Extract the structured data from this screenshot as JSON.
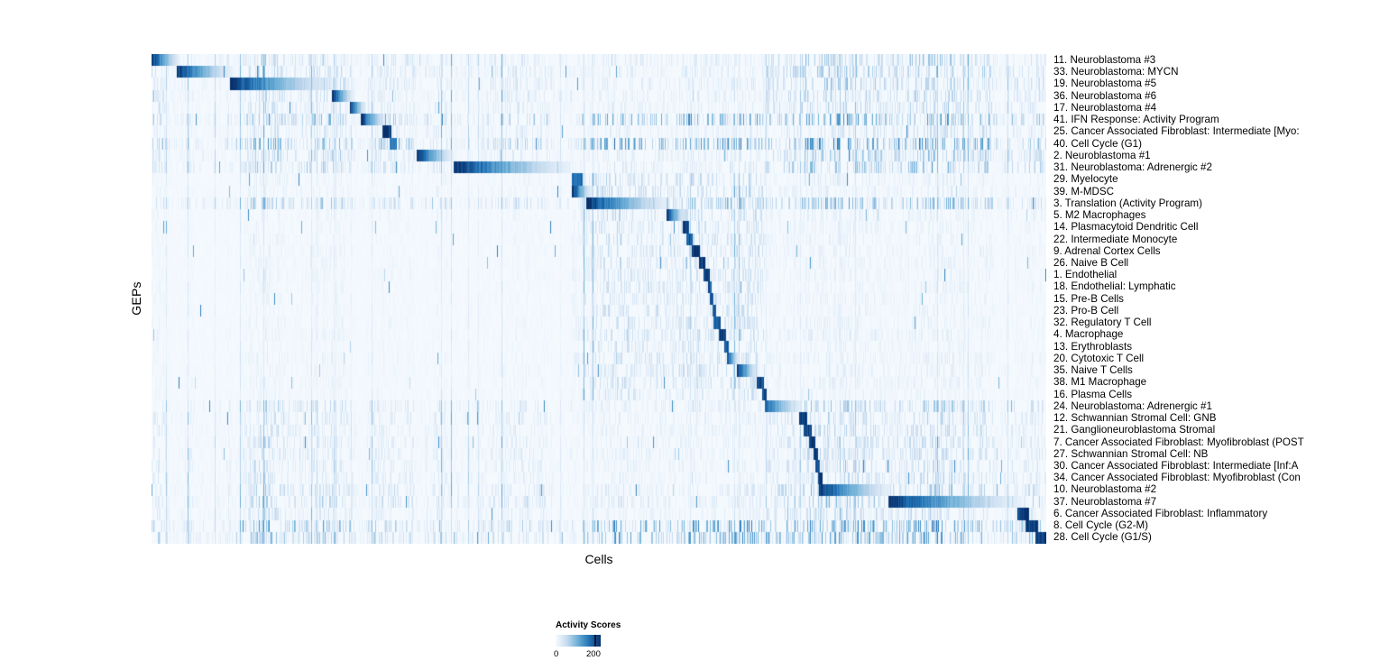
{
  "figure": {
    "y_axis_label": "GEPs",
    "x_axis_label": "Cells",
    "legend": {
      "title": "Activity Scores",
      "min_label": "0",
      "max_label": "200"
    }
  },
  "chart_data": {
    "type": "heatmap",
    "title": "",
    "xlabel": "Cells",
    "ylabel": "GEPs",
    "legend_title": "Activity Scores",
    "colorscale": {
      "min": 0,
      "max": 200,
      "stops": [
        "#f7fbff",
        "#c6dbef",
        "#6baed6",
        "#2171b5",
        "#08306b"
      ]
    },
    "rows": [
      {
        "label": "11. Neuroblastoma #3",
        "start": 0.0,
        "end": 0.032,
        "peak": 200,
        "fade": true,
        "noise": 1.4,
        "group": "nb"
      },
      {
        "label": "33. Neuroblastoma: MYCN",
        "start": 0.028,
        "end": 0.091,
        "peak": 200,
        "fade": true,
        "noise": 1.4,
        "group": "nb"
      },
      {
        "label": "19. Neuroblastoma #5",
        "start": 0.088,
        "end": 0.206,
        "peak": 190,
        "fade": true,
        "noise": 1.4,
        "group": "nb"
      },
      {
        "label": "36. Neuroblastoma #6",
        "start": 0.202,
        "end": 0.226,
        "peak": 200,
        "fade": true,
        "noise": 1.2,
        "group": "nb"
      },
      {
        "label": "17. Neuroblastoma #4",
        "start": 0.222,
        "end": 0.24,
        "peak": 190,
        "fade": true,
        "noise": 1.2,
        "group": "nb"
      },
      {
        "label": "41. IFN Response: Activity Program",
        "start": 0.234,
        "end": 0.262,
        "peak": 200,
        "fade": true,
        "noise": 2.2,
        "group": "cc"
      },
      {
        "label": "25. Cancer Associated Fibroblast: Intermediate [Myo:",
        "start": 0.258,
        "end": 0.268,
        "peak": 200,
        "fade": false,
        "noise": 1.0,
        "group": "nb"
      },
      {
        "label": "40. Cell Cycle (G1)",
        "start": 0.266,
        "end": 0.274,
        "peak": 150,
        "fade": false,
        "noise": 2.5,
        "group": "cc"
      },
      {
        "label": "2. Neuroblastoma #1",
        "start": 0.296,
        "end": 0.338,
        "peak": 200,
        "fade": true,
        "noise": 1.4,
        "group": "nb"
      },
      {
        "label": "31. Neuroblastoma: Adrenergic #2",
        "start": 0.338,
        "end": 0.468,
        "peak": 200,
        "fade": true,
        "noise": 1.6,
        "group": "nb"
      },
      {
        "label": "29. Myelocyte",
        "start": 0.47,
        "end": 0.482,
        "peak": 170,
        "fade": false,
        "noise": 1.0,
        "group": "immune"
      },
      {
        "label": "39. M-MDSC",
        "start": 0.47,
        "end": 0.492,
        "peak": 200,
        "fade": true,
        "noise": 1.2,
        "group": "immune"
      },
      {
        "label": "3. Translation (Activity Program)",
        "start": 0.486,
        "end": 0.579,
        "peak": 200,
        "fade": true,
        "noise": 1.8,
        "group": "cc"
      },
      {
        "label": "5. M2 Macrophages",
        "start": 0.576,
        "end": 0.597,
        "peak": 200,
        "fade": true,
        "noise": 1.0,
        "group": "immune"
      },
      {
        "label": "14. Plasmacytoid Dendritic Cell",
        "start": 0.594,
        "end": 0.601,
        "peak": 200,
        "fade": false,
        "noise": 0.9,
        "group": "immune"
      },
      {
        "label": "22. Intermediate Monocyte",
        "start": 0.598,
        "end": 0.605,
        "peak": 180,
        "fade": false,
        "noise": 0.9,
        "group": "immune"
      },
      {
        "label": "9. Adrenal Cortex Cells",
        "start": 0.604,
        "end": 0.613,
        "peak": 200,
        "fade": false,
        "noise": 0.9,
        "group": "immune"
      },
      {
        "label": "26. Naive B Cell",
        "start": 0.612,
        "end": 0.619,
        "peak": 200,
        "fade": false,
        "noise": 0.9,
        "group": "immune"
      },
      {
        "label": "1. Endothelial",
        "start": 0.617,
        "end": 0.624,
        "peak": 200,
        "fade": false,
        "noise": 0.9,
        "group": "immune"
      },
      {
        "label": "18. Endothelial: Lymphatic",
        "start": 0.622,
        "end": 0.626,
        "peak": 180,
        "fade": false,
        "noise": 0.8,
        "group": "immune"
      },
      {
        "label": "15. Pre-B Cells",
        "start": 0.624,
        "end": 0.628,
        "peak": 180,
        "fade": false,
        "noise": 0.8,
        "group": "immune"
      },
      {
        "label": "23. Pro-B Cell",
        "start": 0.627,
        "end": 0.631,
        "peak": 170,
        "fade": false,
        "noise": 0.8,
        "group": "immune"
      },
      {
        "label": "32. Regulatory T Cell",
        "start": 0.628,
        "end": 0.636,
        "peak": 180,
        "fade": false,
        "noise": 0.9,
        "group": "immune"
      },
      {
        "label": "4. Macrophage",
        "start": 0.634,
        "end": 0.642,
        "peak": 190,
        "fade": false,
        "noise": 1.0,
        "group": "immune"
      },
      {
        "label": "13. Erythroblasts",
        "start": 0.64,
        "end": 0.645,
        "peak": 180,
        "fade": false,
        "noise": 0.8,
        "group": "immune"
      },
      {
        "label": "20. Cytotoxic T Cell",
        "start": 0.643,
        "end": 0.657,
        "peak": 190,
        "fade": true,
        "noise": 1.0,
        "group": "immune"
      },
      {
        "label": "35. Naive T Cells",
        "start": 0.654,
        "end": 0.678,
        "peak": 200,
        "fade": true,
        "noise": 1.0,
        "group": "immune"
      },
      {
        "label": "38. M1 Macrophage",
        "start": 0.676,
        "end": 0.684,
        "peak": 190,
        "fade": false,
        "noise": 1.0,
        "group": "immune"
      },
      {
        "label": "16. Plasma Cells",
        "start": 0.682,
        "end": 0.688,
        "peak": 180,
        "fade": false,
        "noise": 0.8,
        "group": "immune"
      },
      {
        "label": "24. Neuroblastoma: Adrenergic #1",
        "start": 0.685,
        "end": 0.727,
        "peak": 160,
        "fade": true,
        "noise": 1.3,
        "group": "nb"
      },
      {
        "label": "12. Schwannian Stromal Cell: GNB",
        "start": 0.724,
        "end": 0.733,
        "peak": 200,
        "fade": false,
        "noise": 1.0,
        "group": "nb"
      },
      {
        "label": "21. Ganglioneuroblastoma Stromal",
        "start": 0.729,
        "end": 0.738,
        "peak": 190,
        "fade": false,
        "noise": 1.0,
        "group": "nb"
      },
      {
        "label": "7. Cancer Associated Fibroblast: Myofibroblast (POST",
        "start": 0.735,
        "end": 0.742,
        "peak": 200,
        "fade": false,
        "noise": 1.0,
        "group": "nb"
      },
      {
        "label": "27. Schwannian Stromal Cell: NB",
        "start": 0.74,
        "end": 0.745,
        "peak": 190,
        "fade": false,
        "noise": 1.0,
        "group": "nb"
      },
      {
        "label": "30. Cancer Associated Fibroblast: Intermediate [Inf:A",
        "start": 0.742,
        "end": 0.747,
        "peak": 180,
        "fade": false,
        "noise": 1.0,
        "group": "nb"
      },
      {
        "label": "34. Cancer Associated Fibroblast: Myofibroblast (Con",
        "start": 0.745,
        "end": 0.75,
        "peak": 190,
        "fade": false,
        "noise": 1.0,
        "group": "nb"
      },
      {
        "label": "10. Neuroblastoma #2",
        "start": 0.746,
        "end": 0.826,
        "peak": 200,
        "fade": true,
        "noise": 1.4,
        "group": "nb"
      },
      {
        "label": "37. Neuroblastoma #7",
        "start": 0.824,
        "end": 0.972,
        "peak": 200,
        "fade": true,
        "noise": 1.5,
        "group": "nb"
      },
      {
        "label": "6. Cancer Associated Fibroblast: Inflammatory",
        "start": 0.968,
        "end": 0.981,
        "peak": 200,
        "fade": false,
        "noise": 1.0,
        "group": "nb"
      },
      {
        "label": "8. Cell Cycle (G2-M)",
        "start": 0.977,
        "end": 0.991,
        "peak": 190,
        "fade": false,
        "noise": 2.5,
        "group": "cc"
      },
      {
        "label": "28. Cell Cycle (G1/S)",
        "start": 0.988,
        "end": 1.0,
        "peak": 200,
        "fade": false,
        "noise": 2.2,
        "group": "cc"
      }
    ]
  }
}
